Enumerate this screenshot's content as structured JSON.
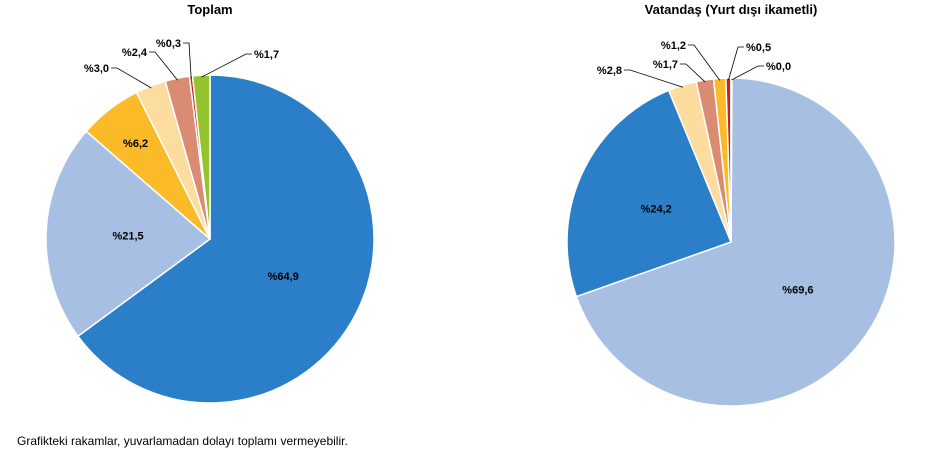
{
  "chart_data": [
    {
      "type": "pie",
      "title": "Toplam",
      "start_angle_deg": 0,
      "slices": [
        {
          "value": 64.9,
          "label": "%64,9",
          "color": "#2a7fc8",
          "label_mode": "inside"
        },
        {
          "value": 21.5,
          "label": "%21,5",
          "color": "#a7bfe3",
          "label_mode": "inside"
        },
        {
          "value": 6.2,
          "label": "%6,2",
          "color": "#fbbb29",
          "label_mode": "inside"
        },
        {
          "value": 3.0,
          "label": "%3,0",
          "color": "#fddc9f",
          "label_mode": "outside"
        },
        {
          "value": 2.4,
          "label": "%2,4",
          "color": "#d98c71",
          "label_mode": "outside"
        },
        {
          "value": 0.3,
          "label": "%0,3",
          "color": "#c3251b",
          "label_mode": "outside"
        },
        {
          "value": 1.7,
          "label": "%1,7",
          "color": "#93c42c",
          "label_mode": "outside"
        }
      ]
    },
    {
      "type": "pie",
      "title": "Vatandaş (Yurt dışı ikametli)",
      "start_angle_deg": 0,
      "slices": [
        {
          "value": 69.6,
          "label": "%69,6",
          "color": "#a7bfe3",
          "label_mode": "inside"
        },
        {
          "value": 24.2,
          "label": "%24,2",
          "color": "#2a7fc8",
          "label_mode": "inside"
        },
        {
          "value": 2.8,
          "label": "%2,8",
          "color": "#fddc9f",
          "label_mode": "outside"
        },
        {
          "value": 1.7,
          "label": "%1,7",
          "color": "#d98c71",
          "label_mode": "outside"
        },
        {
          "value": 1.2,
          "label": "%1,2",
          "color": "#fbbb29",
          "label_mode": "outside"
        },
        {
          "value": 0.5,
          "label": "%0,5",
          "color": "#c3251b",
          "label_mode": "outside"
        },
        {
          "value": 0.0,
          "label": "%0,0",
          "color": "#93c42c",
          "label_mode": "outside"
        }
      ]
    }
  ],
  "footnote": "Grafikteki rakamlar, yuvarlamadan dolayı toplamı vermeyebilir."
}
